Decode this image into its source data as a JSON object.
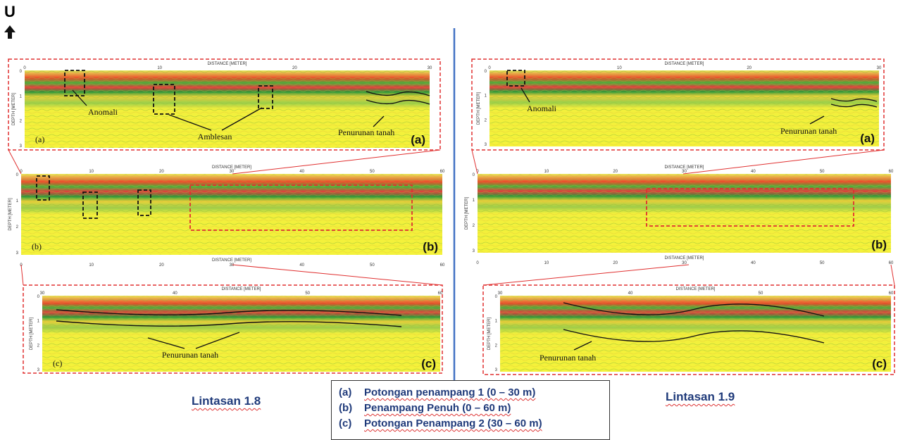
{
  "north": "U",
  "sides": [
    {
      "title": "Lintasan 1.8",
      "panels": [
        {
          "distance_title": "DISTANCE [METER]",
          "depth_title": "DEPTH [METER]",
          "xticks": [
            "0",
            "10",
            "20",
            "30"
          ],
          "yticks": [
            "0",
            "1",
            "2",
            "3"
          ],
          "label_small": "(a)",
          "label_big": "(a)",
          "annotations": [
            "Anomali",
            "Amblesan",
            "Penurunan tanah"
          ]
        },
        {
          "distance_title": "DISTANCE [METER]",
          "depth_title": "DEPTH [METER]",
          "xticks": [
            "0",
            "10",
            "20",
            "30",
            "40",
            "50",
            "60"
          ],
          "yticks": [
            "0",
            "1",
            "2",
            "3"
          ],
          "label_small": "(b)",
          "label_big": "(b)",
          "annotations": [],
          "bottom_title": "DISTANCE [METER]",
          "bottom_xticks": [
            "0",
            "10",
            "20",
            "30",
            "40",
            "50",
            "60"
          ]
        },
        {
          "distance_title": "DISTANCE [METER]",
          "depth_title": "DEPTH [METER]",
          "xticks": [
            "30",
            "40",
            "50",
            "60"
          ],
          "yticks": [
            "0",
            "1",
            "2",
            "3"
          ],
          "label_small": "(c)",
          "label_big": "(c)",
          "annotations": [
            "Penurunan tanah"
          ]
        }
      ]
    },
    {
      "title": "Lintasan 1.9",
      "panels": [
        {
          "distance_title": "DISTANCE [METER]",
          "depth_title": "DEPTH [METER]",
          "xticks": [
            "0",
            "10",
            "20",
            "30"
          ],
          "yticks": [
            "0",
            "1",
            "2",
            "3"
          ],
          "label_small": null,
          "label_big": "(a)",
          "annotations": [
            "Anomali",
            "Penurunan tanah"
          ]
        },
        {
          "distance_title": "DISTANCE [METER]",
          "depth_title": "DEPTH [METER]",
          "xticks": [
            "0",
            "10",
            "20",
            "30",
            "40",
            "50",
            "60"
          ],
          "yticks": [
            "0",
            "1",
            "2",
            "3"
          ],
          "label_small": null,
          "label_big": "(b)",
          "annotations": [],
          "bottom_title": "DISTANCE [METER]",
          "bottom_xticks": [
            "0",
            "10",
            "20",
            "30",
            "40",
            "50",
            "60"
          ]
        },
        {
          "distance_title": "DISTANCE [METER]",
          "depth_title": "DEPTH [METER]",
          "xticks": [
            "30",
            "40",
            "50",
            "60"
          ],
          "yticks": [
            "0",
            "1",
            "2",
            "3"
          ],
          "label_small": null,
          "label_big": "(c)",
          "annotations": [
            "Penurunan tanah"
          ]
        }
      ]
    }
  ],
  "legend": [
    {
      "key": "(a)",
      "text": "Potongan penampang 1 (0 – 30 m)"
    },
    {
      "key": "(b)",
      "text": "Penampang Penuh (0 – 60 m)"
    },
    {
      "key": "(c)",
      "text": "Potongan Penampang 2 (30 – 60 m)"
    }
  ]
}
